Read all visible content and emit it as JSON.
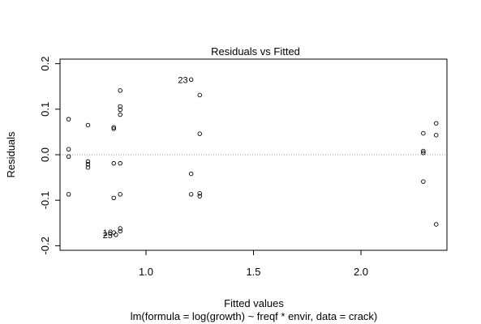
{
  "chart_data": {
    "type": "scatter",
    "title": "Residuals vs Fitted",
    "xlabel": "Fitted values",
    "subtitle": "lm(formula = log(growth) ~ freqf * envir, data = crack)",
    "ylabel": "Residuals",
    "xlim": [
      0.6,
      2.4
    ],
    "ylim": [
      -0.21,
      0.21
    ],
    "x_ticks": [
      1.0,
      1.5,
      2.0
    ],
    "x_tick_labels": [
      "1.0",
      "1.5",
      "2.0"
    ],
    "y_ticks": [
      -0.2,
      -0.1,
      0.0,
      0.1,
      0.2
    ],
    "y_tick_labels": [
      "-0.2",
      "-0.1",
      "0.0",
      "0.1",
      "0.2"
    ],
    "reference_line": 0,
    "grid": false,
    "points": [
      {
        "x": 0.64,
        "y": 0.078
      },
      {
        "x": 0.64,
        "y": 0.012
      },
      {
        "x": 0.64,
        "y": -0.004
      },
      {
        "x": 0.64,
        "y": -0.087
      },
      {
        "x": 0.73,
        "y": 0.065
      },
      {
        "x": 0.73,
        "y": -0.015
      },
      {
        "x": 0.73,
        "y": -0.021
      },
      {
        "x": 0.73,
        "y": -0.028
      },
      {
        "x": 0.85,
        "y": 0.06
      },
      {
        "x": 0.85,
        "y": 0.057
      },
      {
        "x": 0.85,
        "y": -0.019
      },
      {
        "x": 0.85,
        "y": -0.095
      },
      {
        "x": 0.85,
        "y": -0.171
      },
      {
        "x": 0.86,
        "y": -0.176
      },
      {
        "x": 0.88,
        "y": 0.141
      },
      {
        "x": 0.88,
        "y": 0.106
      },
      {
        "x": 0.88,
        "y": 0.099
      },
      {
        "x": 0.88,
        "y": 0.088
      },
      {
        "x": 0.88,
        "y": -0.019
      },
      {
        "x": 0.88,
        "y": -0.087
      },
      {
        "x": 0.88,
        "y": -0.162
      },
      {
        "x": 0.88,
        "y": -0.168
      },
      {
        "x": 1.21,
        "y": 0.165
      },
      {
        "x": 1.21,
        "y": -0.042
      },
      {
        "x": 1.21,
        "y": -0.087
      },
      {
        "x": 1.25,
        "y": 0.131
      },
      {
        "x": 1.25,
        "y": 0.046
      },
      {
        "x": 1.25,
        "y": -0.085
      },
      {
        "x": 1.25,
        "y": -0.091
      },
      {
        "x": 2.29,
        "y": 0.047
      },
      {
        "x": 2.29,
        "y": 0.008
      },
      {
        "x": 2.29,
        "y": 0.004
      },
      {
        "x": 2.29,
        "y": -0.059
      },
      {
        "x": 2.35,
        "y": 0.069
      },
      {
        "x": 2.35,
        "y": 0.043
      },
      {
        "x": 2.35,
        "y": -0.153
      }
    ],
    "point_labels": [
      {
        "text": "23",
        "x": 1.21,
        "y": 0.165
      },
      {
        "text": "25",
        "x": 0.86,
        "y": -0.176
      },
      {
        "text": "16",
        "x": 0.86,
        "y": -0.171
      }
    ]
  }
}
